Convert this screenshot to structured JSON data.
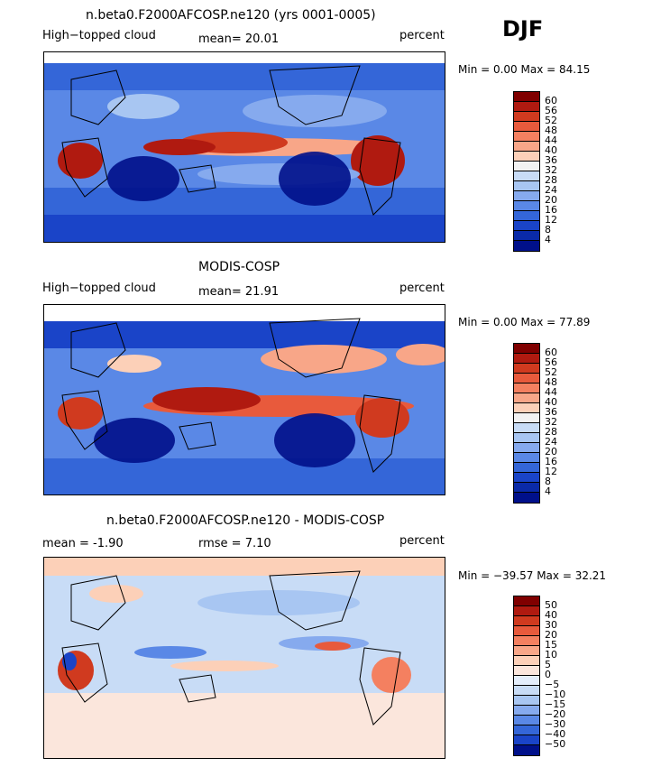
{
  "season": "DJF",
  "panels": [
    {
      "title": "n.beta0.F2000AFCOSP.ne120 (yrs 0001-0005)",
      "left_label": "High−topped cloud",
      "stat_label": "mean=  20.01",
      "units": "percent",
      "minmax": "Min =   0.00 Max =  84.15"
    },
    {
      "title": "MODIS-COSP",
      "left_label": "High−topped cloud",
      "stat_label": "mean=  21.91",
      "units": "percent",
      "minmax": "Min =   0.00 Max =  77.89"
    },
    {
      "title": "n.beta0.F2000AFCOSP.ne120 - MODIS-COSP",
      "left_label": "mean =   -1.90",
      "stat_label": "rmse =   7.10",
      "units": "percent",
      "minmax": "Min = −39.57 Max =  32.21"
    }
  ],
  "colorbar_abs": {
    "levels": [
      "60",
      "56",
      "52",
      "48",
      "44",
      "40",
      "36",
      "32",
      "28",
      "24",
      "20",
      "16",
      "12",
      "8",
      "4"
    ],
    "colors": [
      "#800000",
      "#b01a10",
      "#d03a1f",
      "#e85a3c",
      "#f48060",
      "#f8a688",
      "#fcd0b8",
      "#f2f2f2",
      "#c8dcf6",
      "#a8c6f2",
      "#86aaee",
      "#5a88e6",
      "#3466d8",
      "#1a44c8",
      "#0a2aa8",
      "#00108a"
    ]
  },
  "colorbar_diff": {
    "levels": [
      "50",
      "40",
      "30",
      "20",
      "15",
      "10",
      "5",
      "0",
      "−5",
      "−10",
      "−15",
      "−20",
      "−30",
      "−40",
      "−50"
    ],
    "colors": [
      "#800000",
      "#b01a10",
      "#d03a1f",
      "#e85a3c",
      "#f48060",
      "#f8a688",
      "#fcd0b8",
      "#fbe6dc",
      "#e4eefb",
      "#c8dcf6",
      "#a8c6f2",
      "#86aaee",
      "#5a88e6",
      "#3466d8",
      "#1a44c8",
      "#00108a"
    ]
  }
}
